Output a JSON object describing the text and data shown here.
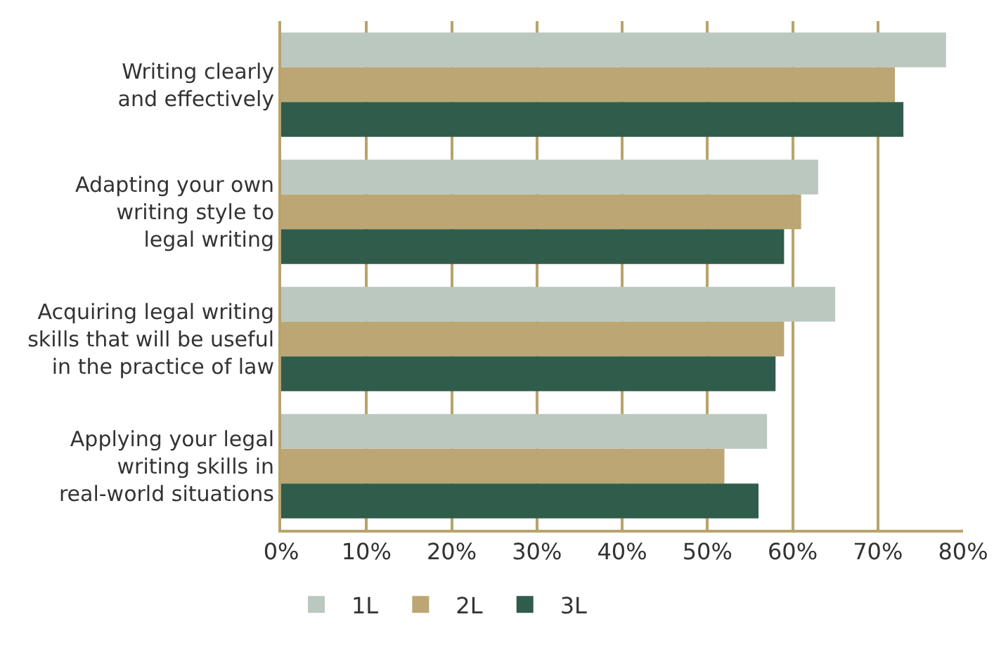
{
  "chart_data": {
    "type": "bar",
    "orientation": "horizontal",
    "categories": [
      "Writing clearly\nand effectively",
      "Adapting your own\nwriting style to\nlegal writing",
      "Acquiring legal writing\nskills that will be useful\nin the practice of law",
      "Applying your legal\nwriting skills in\nreal-world situations"
    ],
    "series": [
      {
        "name": "1L",
        "color": "#bac8c0",
        "values": [
          78,
          63,
          65,
          57
        ]
      },
      {
        "name": "2L",
        "color": "#bba674",
        "values": [
          72,
          61,
          59,
          52
        ]
      },
      {
        "name": "3L",
        "color": "#305c4b",
        "values": [
          73,
          59,
          58,
          56
        ]
      }
    ],
    "xlim": [
      0,
      80
    ],
    "xticks": [
      {
        "value": 0,
        "label": "0%"
      },
      {
        "value": 10,
        "label": "10%"
      },
      {
        "value": 20,
        "label": "20%"
      },
      {
        "value": 30,
        "label": "30%"
      },
      {
        "value": 40,
        "label": "40%"
      },
      {
        "value": 50,
        "label": "50%"
      },
      {
        "value": 60,
        "label": "60%"
      },
      {
        "value": 70,
        "label": "70%"
      },
      {
        "value": 80,
        "label": "80%"
      }
    ],
    "grid": "x",
    "legend": "bottom left"
  }
}
